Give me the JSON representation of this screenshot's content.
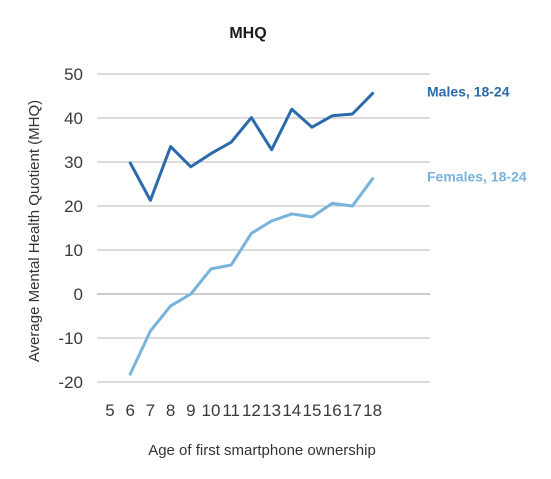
{
  "chart_data": {
    "type": "line",
    "title": "MHQ",
    "xlabel": "Age of first smartphone ownership",
    "ylabel": "Average Mental Health Quotient (MHQ)",
    "x_ticks": [
      5,
      6,
      7,
      8,
      9,
      10,
      11,
      12,
      13,
      14,
      15,
      16,
      17,
      18
    ],
    "y_ticks": [
      -20,
      -10,
      0,
      10,
      20,
      30,
      40,
      50
    ],
    "ylim": [
      -20,
      50
    ],
    "grid": true,
    "legend_placement": "inline-right",
    "x": [
      6,
      7,
      8,
      9,
      10,
      11,
      12,
      13,
      14,
      15,
      16,
      17,
      18
    ],
    "series": [
      {
        "name": "Males, 18-24",
        "color": "#2b6bab",
        "values": [
          29.8,
          21.3,
          33.5,
          28.9,
          31.9,
          34.5,
          40.1,
          32.8,
          42.0,
          37.9,
          40.5,
          40.9,
          45.6
        ]
      },
      {
        "name": "Females, 18-24",
        "color": "#78b3dc",
        "values": [
          -18.2,
          -8.4,
          -2.7,
          0.0,
          5.7,
          6.6,
          13.8,
          16.6,
          18.2,
          17.5,
          20.6,
          20.0,
          26.2
        ]
      }
    ]
  }
}
